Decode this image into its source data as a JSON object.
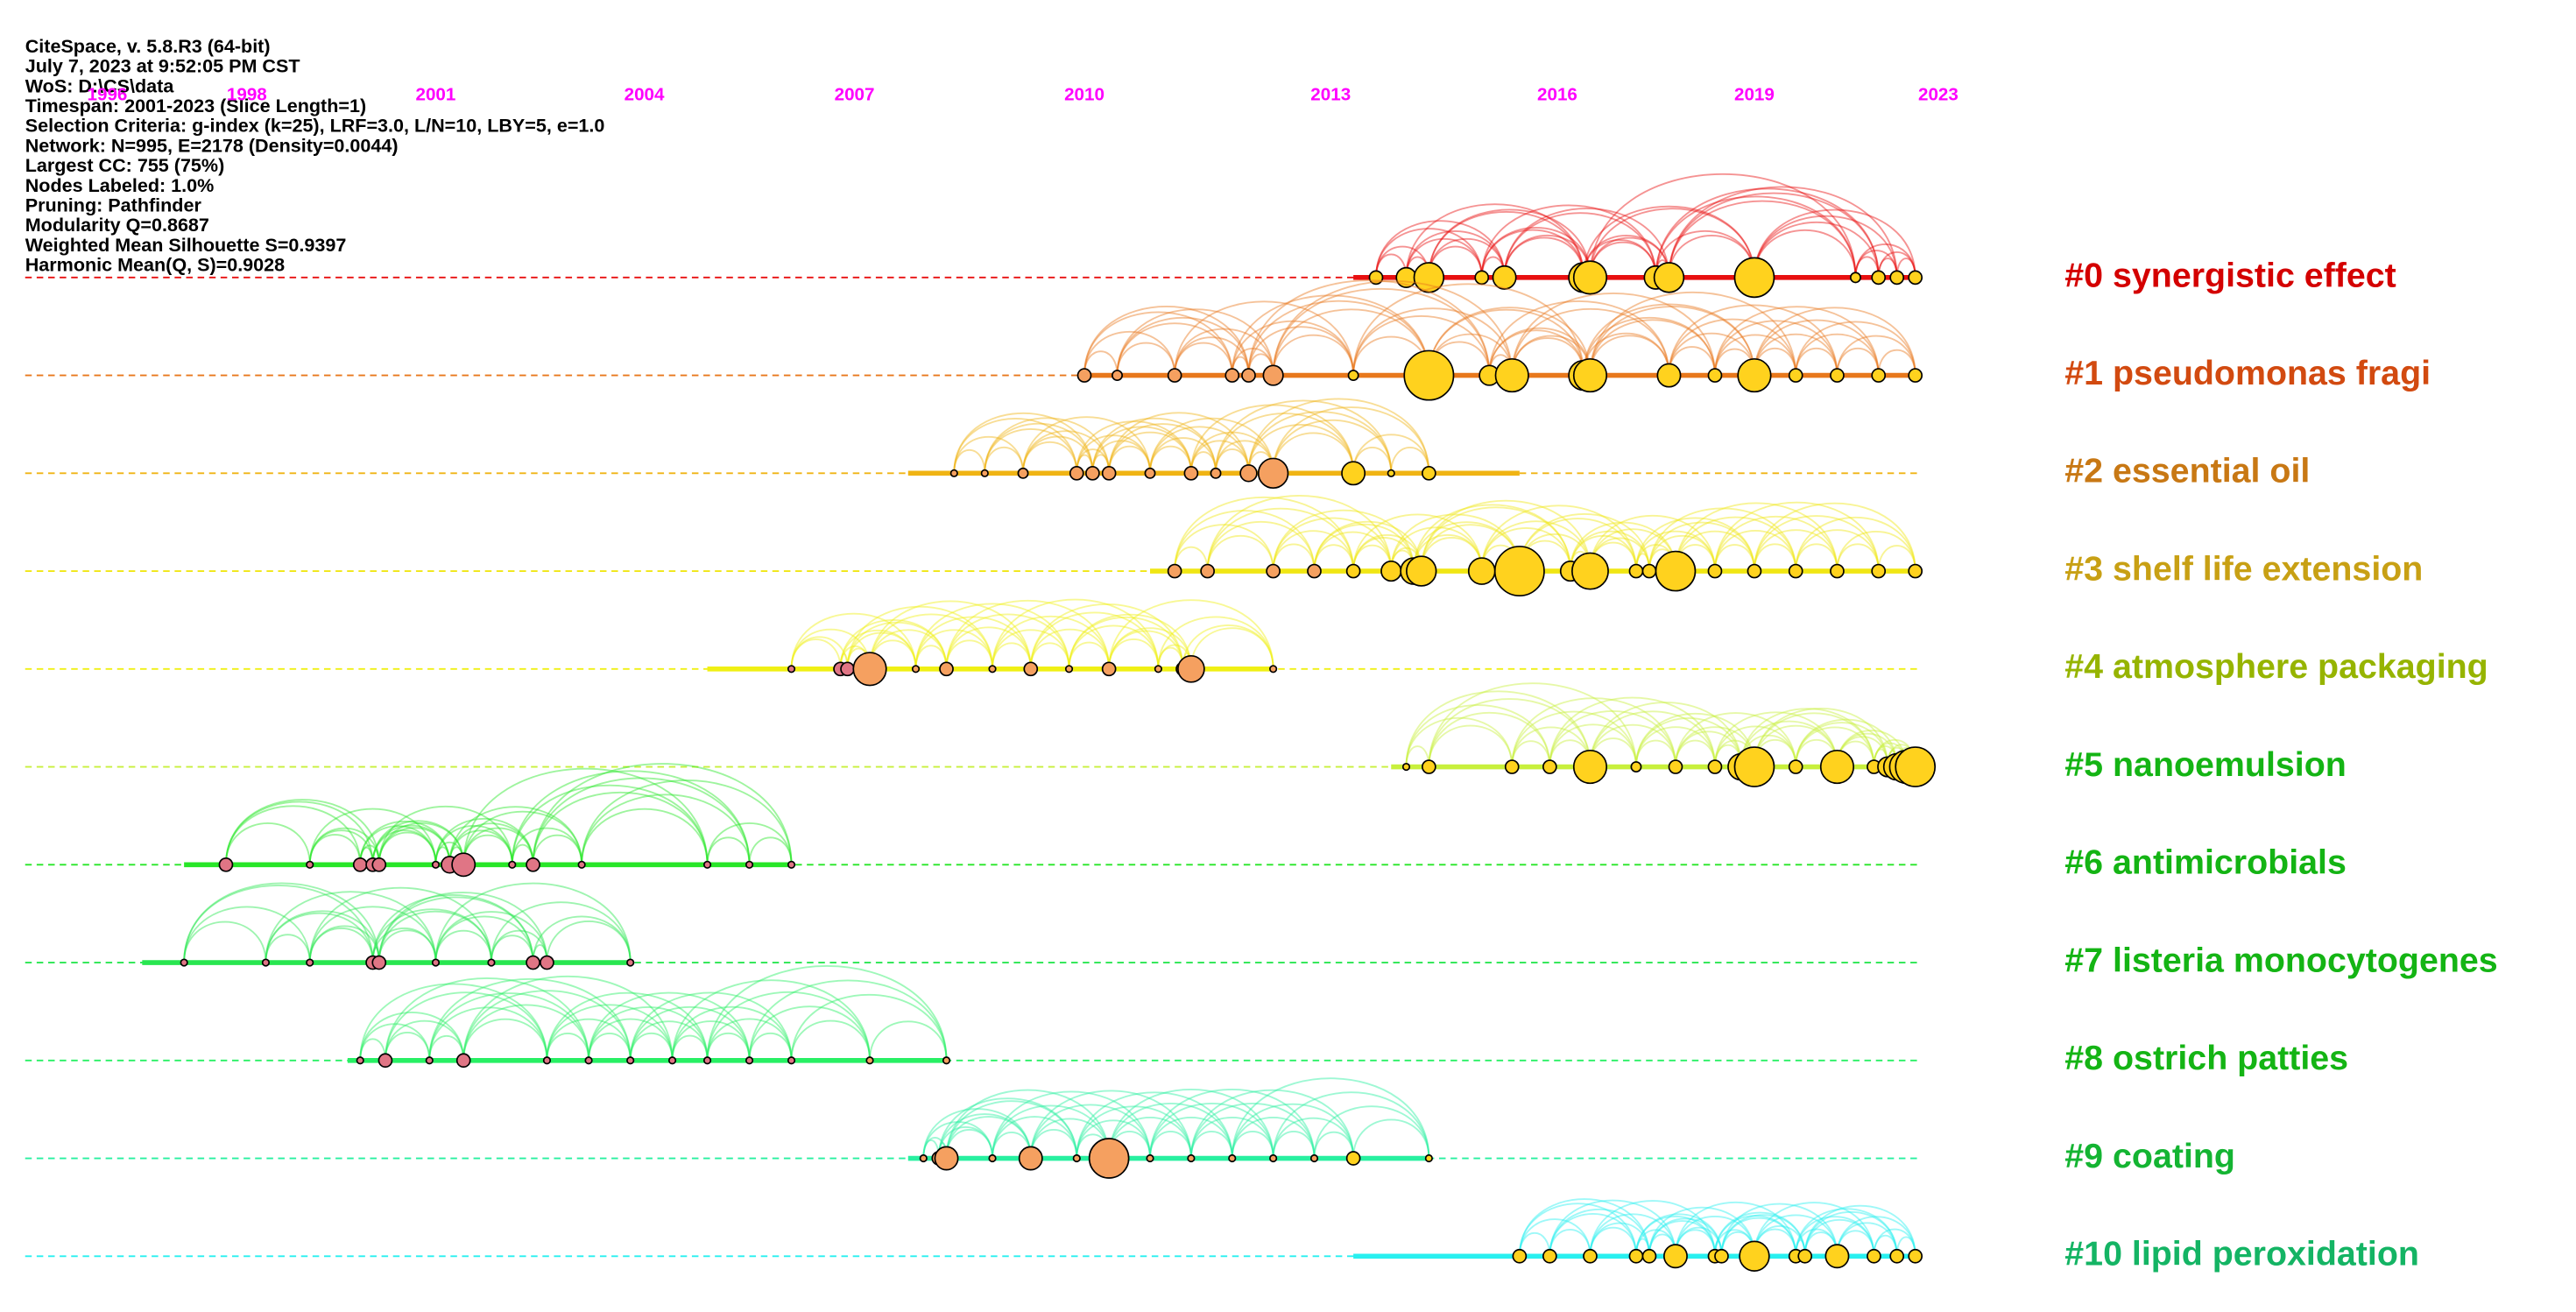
{
  "header": {
    "lines": [
      "CiteSpace, v. 5.8.R3 (64-bit)",
      "July 7, 2023 at 9:52:05 PM CST",
      "WoS: D:\\CS\\data",
      "Timespan: 2001-2023 (Slice Length=1)",
      "Selection Criteria: g-index (k=25), LRF=3.0, L/N=10, LBY=5, e=1.0",
      "Network: N=995, E=2178 (Density=0.0044)",
      "Largest CC: 755 (75%)",
      "Nodes Labeled: 1.0%",
      "Pruning: Pathfinder",
      "Modularity Q=0.8687",
      "Weighted Mean Silhouette S=0.9397",
      "Harmonic Mean(Q, S)=0.9028"
    ]
  },
  "timeline": {
    "years": [
      1996,
      1998,
      2001,
      2004,
      2007,
      2010,
      2013,
      2016,
      2019,
      2023
    ],
    "color": "#ff00ff"
  },
  "clusters": [
    {
      "label": "#0 synergistic effect",
      "color": "#d40000",
      "line_color": "#e81010",
      "span": [
        2013.3,
        2022.5
      ],
      "node_years": [
        2013.6,
        2014,
        2014.3,
        2015,
        2015.3,
        2016.4,
        2016.5,
        2017.5,
        2017.7,
        2019,
        2021.2,
        2021.7,
        2022.1,
        2022.5
      ],
      "node_sizes": [
        4,
        6,
        9,
        4,
        7,
        9,
        10,
        7,
        9,
        12,
        3,
        4,
        4,
        4
      ]
    },
    {
      "label": "#1 pseudomonas fragi",
      "color": "#d24a10",
      "line_color": "#e8781c",
      "span": [
        2010,
        2022.5
      ],
      "node_years": [
        2010,
        2010.4,
        2011.1,
        2011.8,
        2012,
        2012.3,
        2013.3,
        2014.3,
        2015.1,
        2015.4,
        2016.4,
        2016.5,
        2017.7,
        2018.4,
        2019,
        2019.9,
        2020.8,
        2021.7,
        2022.5
      ],
      "node_sizes": [
        4,
        3,
        4,
        4,
        4,
        6,
        3,
        15,
        6,
        10,
        9,
        10,
        7,
        4,
        10,
        4,
        4,
        4,
        4
      ]
    },
    {
      "label": "#2 essential oil",
      "color": "#c87814",
      "line_color": "#f0b414",
      "span": [
        2007.7,
        2015.5
      ],
      "node_years": [
        2008.3,
        2008.7,
        2009.2,
        2009.9,
        2010.1,
        2010.3,
        2010.8,
        2011.3,
        2011.6,
        2012,
        2012.3,
        2013.3,
        2013.8,
        2014.3
      ],
      "node_sizes": [
        2,
        2,
        3,
        4,
        4,
        4,
        3,
        4,
        3,
        5,
        9,
        7,
        2,
        4
      ]
    },
    {
      "label": "#3 shelf life extension",
      "color": "#c8a014",
      "line_color": "#f0e614",
      "span": [
        2010.8,
        2022.5
      ],
      "node_years": [
        2011.1,
        2011.5,
        2012.3,
        2012.8,
        2013.3,
        2013.8,
        2014.1,
        2014.2,
        2015,
        2015.5,
        2016.2,
        2016.5,
        2017.2,
        2017.4,
        2017.8,
        2018.4,
        2019,
        2019.9,
        2020.8,
        2021.7,
        2022.5
      ],
      "node_sizes": [
        4,
        4,
        4,
        4,
        4,
        6,
        8,
        9,
        8,
        15,
        6,
        11,
        4,
        4,
        12,
        4,
        4,
        4,
        4,
        4,
        4
      ]
    },
    {
      "label": "#4 atmosphere packaging",
      "color": "#96b400",
      "line_color": "#f0f014",
      "span": [
        2004.9,
        2012.3
      ],
      "node_years": [
        2006.1,
        2006.8,
        2006.9,
        2007.2,
        2007.8,
        2008.2,
        2008.8,
        2009.3,
        2009.8,
        2010.3,
        2010.9,
        2011.2,
        2011.3,
        2012.3
      ],
      "node_sizes": [
        2,
        4,
        4,
        10,
        2,
        4,
        2,
        4,
        2,
        4,
        2,
        4,
        8,
        2
      ]
    },
    {
      "label": "#5 nanoemulsion",
      "color": "#14b414",
      "line_color": "#c8f03c",
      "span": [
        2013.8,
        2022.5
      ],
      "node_years": [
        2014,
        2014.3,
        2015.4,
        2015.9,
        2016.5,
        2017.2,
        2017.8,
        2018.4,
        2018.8,
        2019,
        2019.9,
        2020.8,
        2021.6,
        2021.9,
        2022.1,
        2022.3,
        2022.5
      ],
      "node_sizes": [
        2,
        4,
        4,
        4,
        10,
        3,
        4,
        4,
        8,
        12,
        4,
        10,
        4,
        6,
        8,
        10,
        12
      ]
    },
    {
      "label": "#6 antimicrobials",
      "color": "#14b414",
      "line_color": "#28e628",
      "span": [
        1997.1,
        2006.1
      ],
      "node_years": [
        1997.7,
        1999,
        1999.8,
        2000,
        2000.1,
        2001,
        2001.2,
        2001.4,
        2002.1,
        2002.4,
        2003.1,
        2004.9,
        2005.5,
        2006.1
      ],
      "node_sizes": [
        4,
        2,
        4,
        4,
        4,
        2,
        5,
        7,
        2,
        4,
        2,
        2,
        2,
        2
      ]
    },
    {
      "label": "#7 listeria monocytogenes",
      "color": "#14b414",
      "line_color": "#28e650",
      "span": [
        1996.5,
        2003.8
      ],
      "node_years": [
        1997.1,
        1998.3,
        1999,
        2000,
        2000.1,
        2001,
        2001.8,
        2002.4,
        2002.6,
        2003.8
      ],
      "node_sizes": [
        2,
        2,
        2,
        4,
        4,
        2,
        2,
        4,
        4,
        2
      ]
    },
    {
      "label": "#8 ostrich patties",
      "color": "#14b414",
      "line_color": "#28f064",
      "span": [
        1999.6,
        2008.2
      ],
      "node_years": [
        1999.8,
        2000.2,
        2000.9,
        2001.4,
        2002.6,
        2003.2,
        2003.8,
        2004.4,
        2004.9,
        2005.5,
        2006.1,
        2007.2,
        2008.2
      ],
      "node_sizes": [
        2,
        4,
        2,
        4,
        2,
        2,
        2,
        2,
        2,
        2,
        2,
        2,
        2
      ]
    },
    {
      "label": "#9 coating",
      "color": "#14b432",
      "line_color": "#28f0a0",
      "span": [
        2007.7,
        2014.3
      ],
      "node_years": [
        2007.9,
        2008.1,
        2008.2,
        2008.8,
        2009.3,
        2009.9,
        2010.3,
        2010.8,
        2011.3,
        2011.8,
        2012.3,
        2012.8,
        2013.3,
        2014.3
      ],
      "node_sizes": [
        2,
        4,
        7,
        2,
        7,
        2,
        12,
        2,
        2,
        2,
        2,
        2,
        4,
        2
      ]
    },
    {
      "label": "#10 lipid peroxidation",
      "color": "#14b464",
      "line_color": "#28f0f0",
      "span": [
        2013.3,
        2022.5
      ],
      "node_years": [
        2015.5,
        2015.9,
        2016.5,
        2017.2,
        2017.4,
        2017.8,
        2018.4,
        2018.5,
        2019,
        2019.9,
        2020.1,
        2020.8,
        2021.6,
        2022.1,
        2022.5
      ],
      "node_sizes": [
        4,
        4,
        4,
        4,
        4,
        7,
        4,
        4,
        9,
        4,
        4,
        7,
        4,
        4,
        4
      ]
    }
  ]
}
